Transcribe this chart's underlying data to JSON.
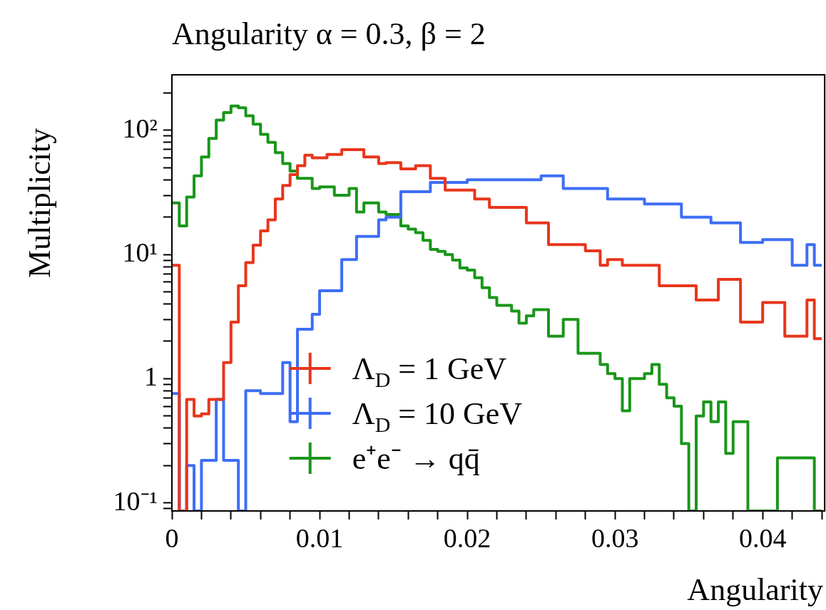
{
  "chart_data": {
    "type": "histogram",
    "title": "Angularity α = 0.3, β = 2",
    "xlabel": "Angularity",
    "ylabel": "Multiplicity",
    "log": "y",
    "legend": "bottom",
    "grid": false,
    "xlim": [
      0,
      0.0442
    ],
    "ylim": [
      0.086,
      280
    ],
    "xticks": [
      0,
      {
        "value": 0.002,
        "label": null
      },
      {
        "value": 0.004,
        "label": null
      },
      {
        "value": 0.006,
        "label": null
      },
      {
        "value": 0.008,
        "label": null
      },
      0.01,
      {
        "value": 0.012,
        "label": null
      },
      {
        "value": 0.014,
        "label": null
      },
      {
        "value": 0.016,
        "label": null
      },
      {
        "value": 0.018,
        "label": null
      },
      0.02,
      {
        "value": 0.022,
        "label": null
      },
      {
        "value": 0.024,
        "label": null
      },
      {
        "value": 0.026,
        "label": null
      },
      {
        "value": 0.028,
        "label": null
      },
      0.03,
      {
        "value": 0.032,
        "label": null
      },
      {
        "value": 0.034,
        "label": null
      },
      {
        "value": 0.036,
        "label": null
      },
      {
        "value": 0.038,
        "label": null
      },
      0.04,
      {
        "value": 0.042,
        "label": null
      },
      {
        "value": 0.044,
        "label": null
      }
    ],
    "yticks": [
      {
        "value": 0.09,
        "label": null
      },
      {
        "value": 0.1,
        "label": "10⁻¹"
      },
      {
        "value": 0.2,
        "label": null
      },
      {
        "value": 0.3,
        "label": null
      },
      {
        "value": 0.4,
        "label": null
      },
      {
        "value": 0.5,
        "label": null
      },
      {
        "value": 0.6,
        "label": null
      },
      {
        "value": 0.7,
        "label": null
      },
      {
        "value": 0.8,
        "label": null
      },
      {
        "value": 0.9,
        "label": null
      },
      1,
      {
        "value": 2,
        "label": null
      },
      {
        "value": 3,
        "label": null
      },
      {
        "value": 4,
        "label": null
      },
      {
        "value": 5,
        "label": null
      },
      {
        "value": 6,
        "label": null
      },
      {
        "value": 7,
        "label": null
      },
      {
        "value": 8,
        "label": null
      },
      {
        "value": 9,
        "label": null
      },
      {
        "value": 10,
        "label": "10¹"
      },
      {
        "value": 20,
        "label": null
      },
      {
        "value": 30,
        "label": null
      },
      {
        "value": 40,
        "label": null
      },
      {
        "value": 50,
        "label": null
      },
      {
        "value": 60,
        "label": null
      },
      {
        "value": 70,
        "label": null
      },
      {
        "value": 80,
        "label": null
      },
      {
        "value": 90,
        "label": null
      },
      {
        "value": 100,
        "label": "10²"
      },
      {
        "value": 200,
        "label": null
      }
    ],
    "bins": [
      0,
      0.0005,
      0.001,
      0.0015,
      0.002,
      0.0025,
      0.003,
      0.0035,
      0.004,
      0.0045,
      0.005,
      0.0055,
      0.006,
      0.0065,
      0.007,
      0.0075,
      0.008,
      0.0085,
      0.009,
      0.0095,
      0.01,
      0.0105,
      0.011,
      0.0115,
      0.012,
      0.0125,
      0.013,
      0.0135,
      0.014,
      0.0145,
      0.015,
      0.0155,
      0.016,
      0.0165,
      0.017,
      0.0175,
      0.018,
      0.0185,
      0.019,
      0.0195,
      0.02,
      0.0205,
      0.021,
      0.0215,
      0.022,
      0.0225,
      0.023,
      0.0235,
      0.024,
      0.0245,
      0.025,
      0.0255,
      0.026,
      0.0265,
      0.027,
      0.0275,
      0.028,
      0.0285,
      0.029,
      0.0295,
      0.03,
      0.0305,
      0.031,
      0.0315,
      0.032,
      0.0325,
      0.033,
      0.0335,
      0.034,
      0.0345,
      0.035,
      0.0355,
      0.036,
      0.0365,
      0.037,
      0.0375,
      0.038,
      0.0385,
      0.039,
      0.0395,
      0.04,
      0.0405,
      0.041,
      0.0415,
      0.042,
      0.0425,
      0.043,
      0.0435,
      0.044
    ],
    "series": [
      {
        "name": "Λ$_{D}$ = 1 GeV",
        "color": "#e8361c",
        "values": [
          8.2,
          null,
          0.68,
          0.5,
          0.52,
          0.68,
          0.68,
          1.35,
          2.85,
          5.6,
          8.6,
          11.9,
          15.5,
          19,
          28,
          36,
          44,
          52,
          63,
          60,
          60,
          64,
          64,
          70,
          70,
          70,
          61,
          61,
          54,
          55,
          55,
          49,
          49,
          52,
          52,
          41,
          41,
          33,
          33,
          33,
          33,
          28,
          28,
          24,
          24,
          24,
          24,
          24,
          18,
          18,
          18,
          12,
          12,
          12,
          12,
          12,
          10.7,
          10.7,
          8.2,
          9.1,
          9.1,
          8.2,
          8.2,
          8.2,
          8.2,
          8.2,
          5.6,
          5.6,
          5.6,
          5.6,
          5.6,
          4.3,
          4.3,
          4.3,
          6.3,
          6.3,
          6.3,
          2.85,
          2.85,
          2.85,
          4.1,
          4.1,
          4.1,
          2.2,
          2.2,
          2.2,
          4.3,
          2.1
        ]
      },
      {
        "name": "Λ$_{D}$ = 10 GeV",
        "color": "#3d6ef5",
        "values": [
          0.76,
          null,
          0.2,
          null,
          0.22,
          0.22,
          0.68,
          0.22,
          0.22,
          null,
          0.8,
          0.8,
          0.76,
          0.76,
          0.76,
          1.35,
          0.45,
          2.5,
          2.5,
          3.3,
          5.1,
          5.1,
          5.1,
          9.1,
          9.1,
          14,
          14,
          14,
          19,
          20,
          20,
          32,
          32,
          32,
          32,
          38,
          38,
          38,
          38,
          38,
          40,
          40,
          40,
          40,
          40,
          40,
          40,
          40,
          40,
          40,
          43,
          43,
          43,
          34,
          34,
          34,
          34,
          34,
          34,
          28,
          28,
          28,
          28,
          28,
          25.5,
          25.5,
          25.5,
          25.5,
          25.5,
          20,
          20,
          20,
          20,
          18,
          18,
          18,
          18,
          12.5,
          12.5,
          12.5,
          13.2,
          13.2,
          13.2,
          13.2,
          8.2,
          8.2,
          12,
          8.2
        ]
      },
      {
        "name": "e⁺e⁻ → qq̄",
        "color": "#1a961a",
        "values": [
          26,
          17,
          29,
          43,
          61,
          86,
          121,
          139,
          157,
          152,
          131,
          112,
          93,
          80,
          66,
          54,
          47,
          41,
          41,
          34,
          35,
          35,
          30,
          30,
          34,
          22,
          26,
          26,
          22,
          21,
          21,
          17,
          16,
          15,
          13,
          11,
          10.6,
          10,
          9,
          7.8,
          7.5,
          6.5,
          5.4,
          4.5,
          3.9,
          3.9,
          3.5,
          2.8,
          3.2,
          3.6,
          3.6,
          2.2,
          2.2,
          3,
          3,
          1.6,
          1.6,
          1.6,
          1.3,
          1.1,
          1.0,
          0.55,
          1.0,
          1.0,
          1.1,
          1.3,
          0.9,
          0.7,
          0.6,
          0.3,
          null,
          0.5,
          0.65,
          0.45,
          0.65,
          0.25,
          0.45,
          0.45,
          null,
          null,
          null,
          null,
          0.23,
          0.23,
          0.23,
          0.23,
          0.23,
          null
        ]
      }
    ]
  }
}
